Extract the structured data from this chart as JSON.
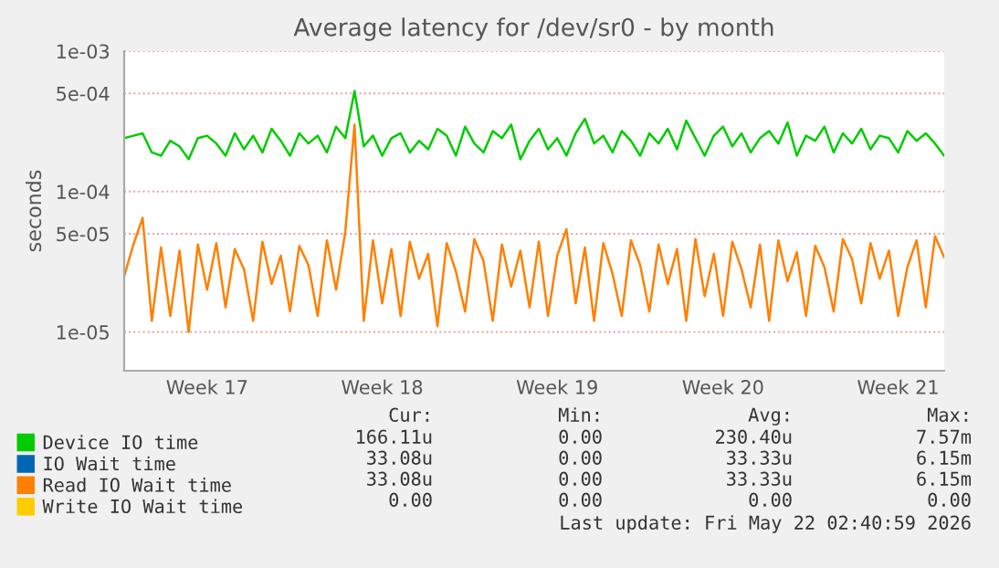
{
  "chart_data": {
    "type": "line",
    "title": "Average latency for /dev/sr0 - by month",
    "ylabel": "seconds",
    "categories": [
      null,
      null,
      null,
      null,
      null,
      null,
      null,
      null,
      null,
      "Week 17",
      null,
      null,
      null,
      null,
      null,
      null,
      null,
      null,
      null,
      null,
      null,
      null,
      null,
      null,
      null,
      null,
      null,
      null,
      "Week 18",
      null,
      null,
      null,
      null,
      null,
      null,
      null,
      null,
      null,
      null,
      null,
      null,
      null,
      null,
      null,
      null,
      null,
      null,
      "Week 19",
      null,
      null,
      null,
      null,
      null,
      null,
      null,
      null,
      null,
      null,
      null,
      null,
      null,
      null,
      null,
      null,
      null,
      "Week 20",
      null,
      null,
      null,
      null,
      null,
      null,
      null,
      null,
      null,
      null,
      null,
      null,
      null,
      null,
      null,
      null,
      null,
      null,
      "Week 21",
      null,
      null,
      null,
      null,
      null
    ],
    "series": [
      {
        "name": "Device IO time",
        "color": "#00cc00",
        "values": [
          0.00024,
          0.00025,
          0.00026,
          0.00019,
          0.00018,
          0.00023,
          0.00021,
          0.00017,
          0.00024,
          0.00025,
          0.00022,
          0.00018,
          0.00026,
          0.0002,
          0.00025,
          0.00019,
          0.00028,
          0.00023,
          0.00018,
          0.00026,
          0.00022,
          0.00025,
          0.00019,
          0.00029,
          0.00024,
          0.00052,
          0.00021,
          0.00025,
          0.00018,
          0.00024,
          0.00026,
          0.00019,
          0.00023,
          0.0002,
          0.00028,
          0.00025,
          0.00018,
          0.00029,
          0.00022,
          0.00019,
          0.00027,
          0.00024,
          0.0003,
          0.00017,
          0.00023,
          0.00028,
          0.0002,
          0.00024,
          0.00018,
          0.00026,
          0.00033,
          0.00022,
          0.00025,
          0.00019,
          0.00027,
          0.00023,
          0.00018,
          0.00026,
          0.00022,
          0.00028,
          0.0002,
          0.00032,
          0.00024,
          0.00018,
          0.00025,
          0.00029,
          0.00021,
          0.00026,
          0.00019,
          0.00024,
          0.00027,
          0.00022,
          0.00031,
          0.00018,
          0.00025,
          0.00023,
          0.00029,
          0.00019,
          0.00026,
          0.00022,
          0.00028,
          0.0002,
          0.00025,
          0.00024,
          0.00019,
          0.00027,
          0.00023,
          0.00026,
          0.00022,
          0.00018
        ]
      },
      {
        "name": "IO Wait time",
        "color": "#0066b3",
        "values": [
          null,
          null,
          null,
          null,
          null,
          null,
          null,
          null,
          null,
          null,
          null,
          null,
          null,
          null,
          null,
          null,
          null,
          null,
          null,
          null,
          null,
          null,
          null,
          null,
          null,
          null,
          null,
          null,
          null,
          null,
          null,
          null,
          null,
          null,
          null,
          null,
          null,
          null,
          null,
          null,
          null,
          null,
          null,
          null,
          null,
          null,
          null,
          null,
          null,
          null,
          null,
          null,
          null,
          null,
          null,
          null,
          null,
          null,
          null,
          null,
          null,
          null,
          null,
          null,
          null,
          null,
          null,
          null,
          null,
          null,
          null,
          null,
          null,
          null,
          null,
          null,
          null,
          null,
          null,
          null,
          null,
          null,
          null,
          null,
          null,
          null,
          null,
          null,
          null,
          null
        ]
      },
      {
        "name": "Read IO Wait time",
        "color": "#ff8000",
        "values": [
          2.5e-05,
          4.2e-05,
          6.5e-05,
          1.2e-05,
          4e-05,
          1.3e-05,
          3.8e-05,
          1e-05,
          4.2e-05,
          2e-05,
          4.3e-05,
          1.5e-05,
          3.9e-05,
          2.8e-05,
          1.2e-05,
          4.4e-05,
          2.2e-05,
          3.5e-05,
          1.4e-05,
          4.1e-05,
          3e-05,
          1.3e-05,
          4.5e-05,
          2e-05,
          5.2e-05,
          0.0003,
          1.2e-05,
          4.5e-05,
          1.6e-05,
          3.9e-05,
          1.3e-05,
          4.4e-05,
          2.4e-05,
          3.6e-05,
          1.1e-05,
          4.3e-05,
          2.7e-05,
          1.4e-05,
          4.6e-05,
          3.2e-05,
          1.2e-05,
          4.2e-05,
          2.1e-05,
          3.8e-05,
          1.5e-05,
          4.4e-05,
          1.3e-05,
          3.5e-05,
          5.4e-05,
          1.6e-05,
          4e-05,
          1.2e-05,
          4.3e-05,
          2.6e-05,
          1.3e-05,
          4.5e-05,
          3e-05,
          1.4e-05,
          4.2e-05,
          2.2e-05,
          3.9e-05,
          1.2e-05,
          4.6e-05,
          1.8e-05,
          3.6e-05,
          1.3e-05,
          4.4e-05,
          2.8e-05,
          1.5e-05,
          4.2e-05,
          1.2e-05,
          4.5e-05,
          2.3e-05,
          3.7e-05,
          1.3e-05,
          4.1e-05,
          2.9e-05,
          1.4e-05,
          4.6e-05,
          3.3e-05,
          1.6e-05,
          4.3e-05,
          2.4e-05,
          3.8e-05,
          1.3e-05,
          2.9e-05,
          4.5e-05,
          1.5e-05,
          4.8e-05,
          3.4e-05
        ]
      },
      {
        "name": "Write IO Wait time",
        "color": "#ffcc00",
        "values": [
          null,
          null,
          null,
          null,
          null,
          null,
          null,
          null,
          null,
          null,
          null,
          null,
          null,
          null,
          null,
          null,
          null,
          null,
          null,
          null,
          null,
          null,
          null,
          null,
          null,
          null,
          null,
          null,
          null,
          null,
          null,
          null,
          null,
          null,
          null,
          null,
          null,
          null,
          null,
          null,
          null,
          null,
          null,
          null,
          null,
          null,
          null,
          null,
          null,
          null,
          null,
          null,
          null,
          null,
          null,
          null,
          null,
          null,
          null,
          null,
          null,
          null,
          null,
          null,
          null,
          null,
          null,
          null,
          null,
          null,
          null,
          null,
          null,
          null,
          null,
          null,
          null,
          null,
          null,
          null,
          null,
          null,
          null,
          null,
          null,
          null,
          null,
          null,
          null,
          null
        ]
      }
    ],
    "log": "y",
    "ylim": [
      5.3e-06,
      0.001
    ],
    "yticks": [
      {
        "value": 1e-05,
        "label": "1e-05"
      },
      {
        "value": 5e-05,
        "label": "5e-05"
      },
      {
        "value": 0.0001,
        "label": "1e-04"
      },
      {
        "value": 0.0005,
        "label": "5e-04"
      },
      {
        "value": 0.001,
        "label": "1e-03"
      }
    ],
    "grid": "y",
    "legend": "bottom left",
    "line_style": "solid",
    "marker": "none",
    "annotations": [
      "Cur:",
      "Min:",
      "Avg:",
      "Max:",
      "166.11u",
      "0.00",
      "230.40u",
      "7.57m",
      "33.08u",
      "0.00",
      "33.33u",
      "6.15m",
      "33.08u",
      "0.00",
      "33.33u",
      "6.15m",
      "0.00",
      "0.00",
      "0.00",
      "0.00",
      "Last update: Fri May 22 02:40:59 2026"
    ]
  }
}
